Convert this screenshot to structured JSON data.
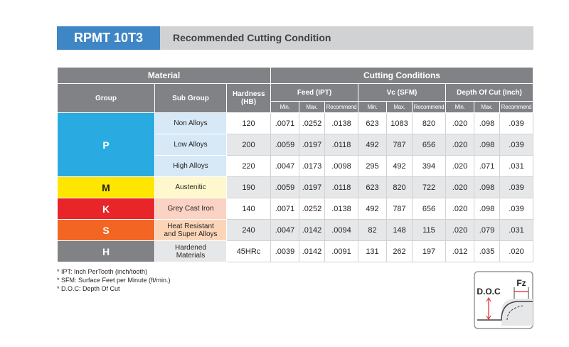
{
  "header": {
    "code": "RPMT 10T3",
    "title": "Recommended Cutting Condition"
  },
  "table": {
    "material_header": "Material",
    "conditions_header": "Cutting Conditions",
    "columns": [
      "Group",
      "Sub Group",
      "Hardness (HB)"
    ],
    "condition_groups": [
      "Feed (IPT)",
      "Vc (SFM)",
      "Depth Of Cut (Inch)"
    ],
    "sub_columns": [
      "Min.",
      "Max.",
      "Recommend"
    ],
    "groups": [
      {
        "label": "P",
        "rows": [
          {
            "sub_group": "Non Alloys",
            "hardness": "120",
            "values": [
              ".0071",
              ".0252",
              ".0138",
              "623",
              "1083",
              "820",
              ".020",
              ".098",
              ".039"
            ]
          },
          {
            "sub_group": "Low Alloys",
            "hardness": "200",
            "values": [
              ".0059",
              ".0197",
              ".0118",
              "492",
              "787",
              "656",
              ".020",
              ".098",
              ".039"
            ]
          },
          {
            "sub_group": "High Alloys",
            "hardness": "220",
            "values": [
              ".0047",
              ".0173",
              ".0098",
              "295",
              "492",
              "394",
              ".020",
              ".071",
              ".031"
            ]
          }
        ]
      },
      {
        "label": "M",
        "rows": [
          {
            "sub_group": "Austenitic",
            "hardness": "190",
            "values": [
              ".0059",
              ".0197",
              ".0118",
              "623",
              "820",
              "722",
              ".020",
              ".098",
              ".039"
            ]
          }
        ]
      },
      {
        "label": "K",
        "rows": [
          {
            "sub_group": "Grey Cast Iron",
            "hardness": "140",
            "values": [
              ".0071",
              ".0252",
              ".0138",
              "492",
              "787",
              "656",
              ".020",
              ".098",
              ".039"
            ]
          }
        ]
      },
      {
        "label": "S",
        "rows": [
          {
            "sub_group": "Heat Resistant and Super Alloys",
            "hardness": "240",
            "values": [
              ".0047",
              ".0142",
              ".0094",
              "82",
              "148",
              "115",
              ".020",
              ".079",
              ".031"
            ]
          }
        ]
      },
      {
        "label": "H",
        "rows": [
          {
            "sub_group": "Hardened Materials",
            "hardness": "45HRc",
            "values": [
              ".0039",
              ".0142",
              ".0091",
              "131",
              "262",
              "197",
              ".012",
              ".035",
              ".020"
            ]
          }
        ]
      }
    ]
  },
  "footnotes": [
    "* IPT: Inch PerTooth (inch/tooth)",
    "* SFM: Surface Feet per Minute (ft/min.)",
    "* D.O.C: Depth Of Cut"
  ],
  "diagram": {
    "doc": "D.O.C",
    "fz": "Fz"
  }
}
